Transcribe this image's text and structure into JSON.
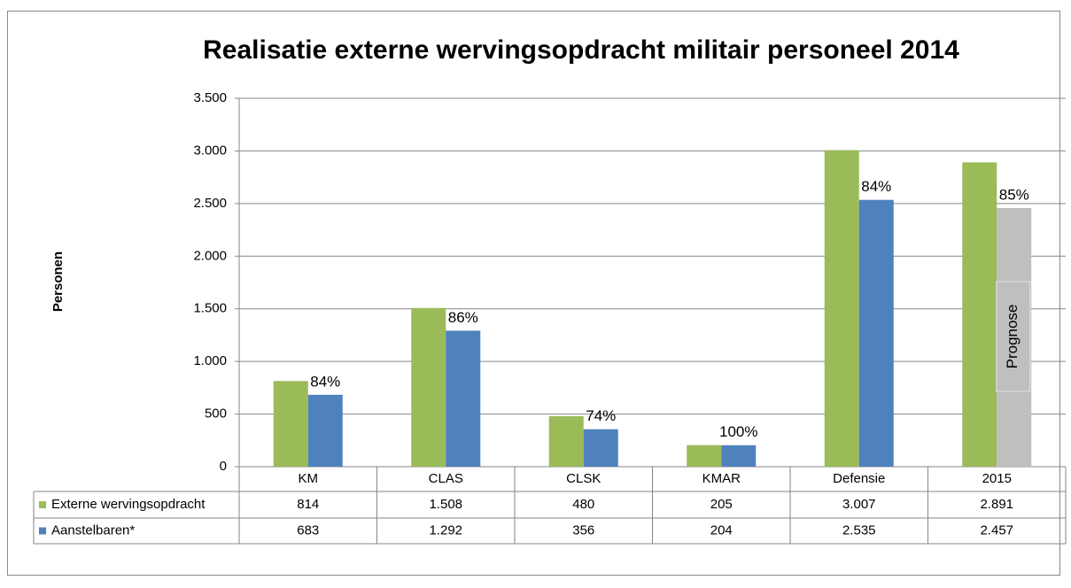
{
  "chart_data": {
    "type": "bar",
    "title": "Realisatie externe wervingsopdracht militair personeel 2014",
    "y_label": "Personen",
    "categories": [
      "KM",
      "CLAS",
      "CLSK",
      "KMAR",
      "Defensie",
      "2015"
    ],
    "series": [
      {
        "name": "Externe wervingsopdracht",
        "color": "#9bbb59",
        "values": [
          814,
          1508,
          480,
          205,
          3007,
          2891
        ],
        "value_labels": [
          "814",
          "1.508",
          "480",
          "205",
          "3.007",
          "2.891"
        ]
      },
      {
        "name": "Aanstelbaren*",
        "color": "#4f81bd",
        "point_colors": [
          "#4f81bd",
          "#4f81bd",
          "#4f81bd",
          "#4f81bd",
          "#4f81bd",
          "#bfbfbf"
        ],
        "values": [
          683,
          1292,
          356,
          204,
          2535,
          2457
        ],
        "value_labels": [
          "683",
          "1.292",
          "356",
          "204",
          "2.535",
          "2.457"
        ],
        "ratio_labels": [
          "84%",
          "86%",
          "74%",
          "100%",
          "84%",
          "85%"
        ]
      }
    ],
    "annotation": "Prognose",
    "ylim": [
      0,
      3500
    ],
    "yticks": [
      0,
      500,
      {
        "value": 1000,
        "label": "1.000"
      },
      {
        "value": 1500,
        "label": "1.500"
      },
      {
        "value": 2000,
        "label": "2.000"
      },
      {
        "value": 2500,
        "label": "2.500"
      },
      {
        "value": 3000,
        "label": "3.000"
      },
      {
        "value": 3500,
        "label": "3.500"
      }
    ],
    "grid": true
  }
}
